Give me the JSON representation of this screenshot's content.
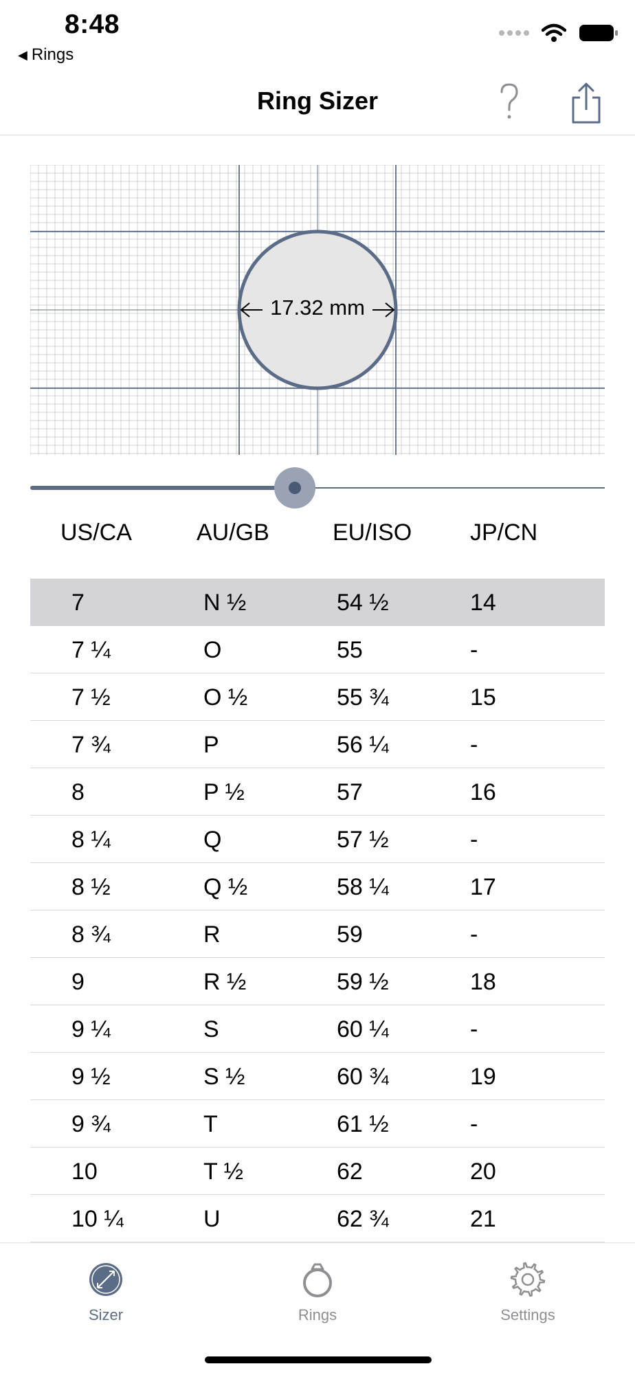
{
  "status_bar": {
    "time": "8:48",
    "back_label": "Rings"
  },
  "nav": {
    "title": "Ring Sizer",
    "help_label": "?"
  },
  "sizer": {
    "diameter_label": "17.32 mm",
    "slider_value": 0.46
  },
  "table": {
    "headers": [
      "US/CA",
      "AU/GB",
      "EU/ISO",
      "JP/CN"
    ],
    "selected_index": 0,
    "rows": [
      [
        "7",
        "N ½",
        "54 ½",
        "14"
      ],
      [
        "7 ¼",
        "O",
        "55",
        "-"
      ],
      [
        "7 ½",
        "O ½",
        "55 ¾",
        "15"
      ],
      [
        "7 ¾",
        "P",
        "56 ¼",
        "-"
      ],
      [
        "8",
        "P ½",
        "57",
        "16"
      ],
      [
        "8 ¼",
        "Q",
        "57 ½",
        "-"
      ],
      [
        "8 ½",
        "Q ½",
        "58 ¼",
        "17"
      ],
      [
        "8 ¾",
        "R",
        "59",
        "-"
      ],
      [
        "9",
        "R ½",
        "59 ½",
        "18"
      ],
      [
        "9 ¼",
        "S",
        "60 ¼",
        "-"
      ],
      [
        "9 ½",
        "S ½",
        "60 ¾",
        "19"
      ],
      [
        "9 ¾",
        "T",
        "61 ½",
        "-"
      ],
      [
        "10",
        "T ½",
        "62",
        "20"
      ],
      [
        "10 ¼",
        "U",
        "62 ¾",
        "21"
      ]
    ]
  },
  "tabs": [
    {
      "label": "Sizer",
      "icon": "sizer-icon",
      "active": true
    },
    {
      "label": "Rings",
      "icon": "ring-icon",
      "active": false
    },
    {
      "label": "Settings",
      "icon": "gear-icon",
      "active": false
    }
  ],
  "colors": {
    "accent": "#5b6c86",
    "selected_row": "#d3d3d8",
    "grid_line": "#c4c4c4",
    "inactive_tab": "#8e8e93"
  }
}
